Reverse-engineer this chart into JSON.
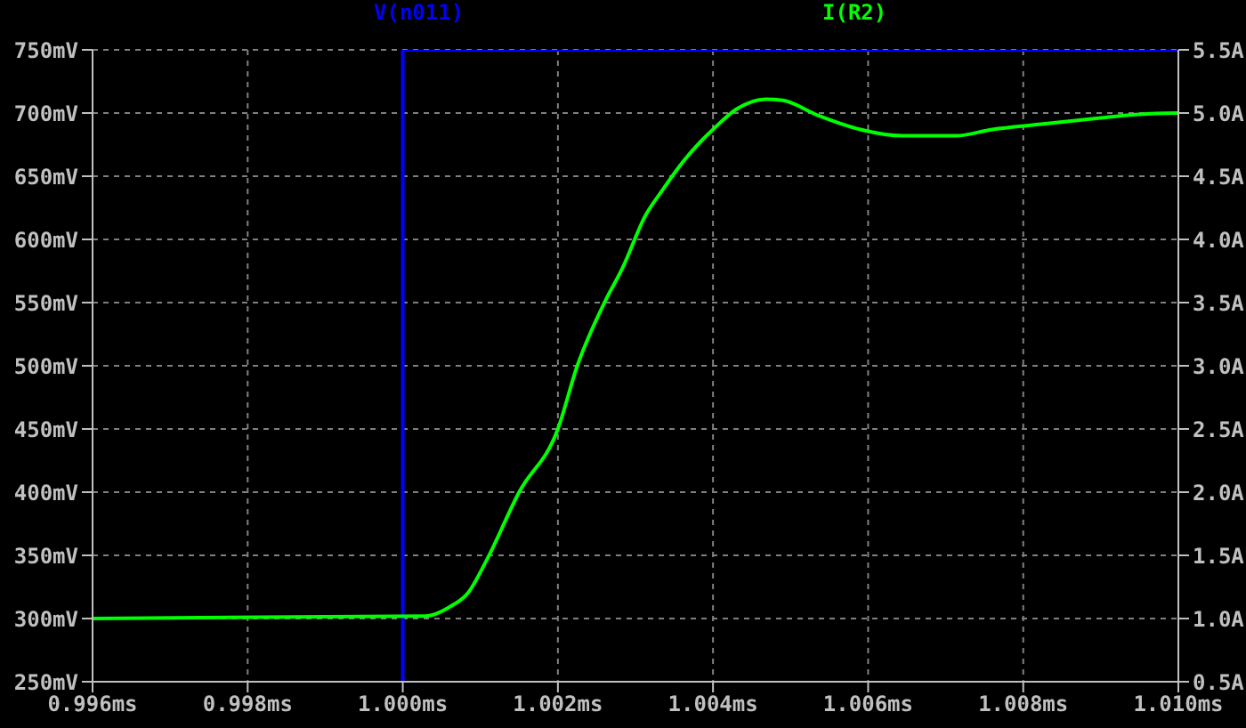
{
  "chart_data": {
    "type": "line",
    "legend": "top",
    "grid": true,
    "marker": "none",
    "line_style": "solid",
    "xlim": [
      0.996,
      1.01
    ],
    "xticks": [
      {
        "value": 0.996,
        "label": "0.996ms"
      },
      {
        "value": 0.998,
        "label": "0.998ms"
      },
      {
        "value": 1.0,
        "label": "1.000ms"
      },
      {
        "value": 1.002,
        "label": "1.002ms"
      },
      {
        "value": 1.004,
        "label": "1.004ms"
      },
      {
        "value": 1.006,
        "label": "1.006ms"
      },
      {
        "value": 1.008,
        "label": "1.008ms"
      },
      {
        "value": 1.01,
        "label": "1.010ms"
      }
    ],
    "ylim": [
      250,
      750
    ],
    "yticks": [
      {
        "value": 250,
        "label": "250mV"
      },
      {
        "value": 300,
        "label": "300mV"
      },
      {
        "value": 350,
        "label": "350mV"
      },
      {
        "value": 400,
        "label": "400mV"
      },
      {
        "value": 450,
        "label": "450mV"
      },
      {
        "value": 500,
        "label": "500mV"
      },
      {
        "value": 550,
        "label": "550mV"
      },
      {
        "value": 600,
        "label": "600mV"
      },
      {
        "value": 650,
        "label": "650mV"
      },
      {
        "value": 700,
        "label": "700mV"
      },
      {
        "value": 750,
        "label": "750mV"
      }
    ],
    "y2lim": [
      0.5,
      5.5
    ],
    "y2ticks": [
      {
        "value": 0.5,
        "label": "0.5A"
      },
      {
        "value": 1.0,
        "label": "1.0A"
      },
      {
        "value": 1.5,
        "label": "1.5A"
      },
      {
        "value": 2.0,
        "label": "2.0A"
      },
      {
        "value": 2.5,
        "label": "2.5A"
      },
      {
        "value": 3.0,
        "label": "3.0A"
      },
      {
        "value": 3.5,
        "label": "3.5A"
      },
      {
        "value": 4.0,
        "label": "4.0A"
      },
      {
        "value": 4.5,
        "label": "4.5A"
      },
      {
        "value": 5.0,
        "label": "5.0A"
      },
      {
        "value": 5.5,
        "label": "5.5A"
      }
    ],
    "series": [
      {
        "name": "V(n011)",
        "color": "#0000ff",
        "x": [
          1.0,
          1.0,
          1.01
        ],
        "values": [
          250,
          750,
          750
        ]
      },
      {
        "name": "I(R2)",
        "color": "#00ff00",
        "axis": "y2",
        "x": [
          0.996,
          1.0003,
          1.0006,
          1.00085,
          1.00108,
          1.0015,
          1.002,
          1.00225,
          1.0026,
          1.00283,
          1.00313,
          1.00336,
          1.00362,
          1.00385,
          1.004,
          1.0043,
          1.00468,
          1.0049,
          1.00536,
          1.0059,
          1.00644,
          1.00713,
          1.0076,
          1.0082,
          1.00897,
          1.0095,
          1.01
        ],
        "values": [
          1.0,
          1.02,
          1.09,
          1.21,
          1.46,
          2.0,
          2.5,
          3.0,
          3.5,
          3.77,
          4.19,
          4.4,
          4.62,
          4.78,
          4.87,
          5.03,
          5.11,
          5.1,
          4.98,
          4.87,
          4.82,
          4.82,
          4.87,
          4.91,
          4.96,
          4.99,
          5.0
        ]
      }
    ]
  }
}
